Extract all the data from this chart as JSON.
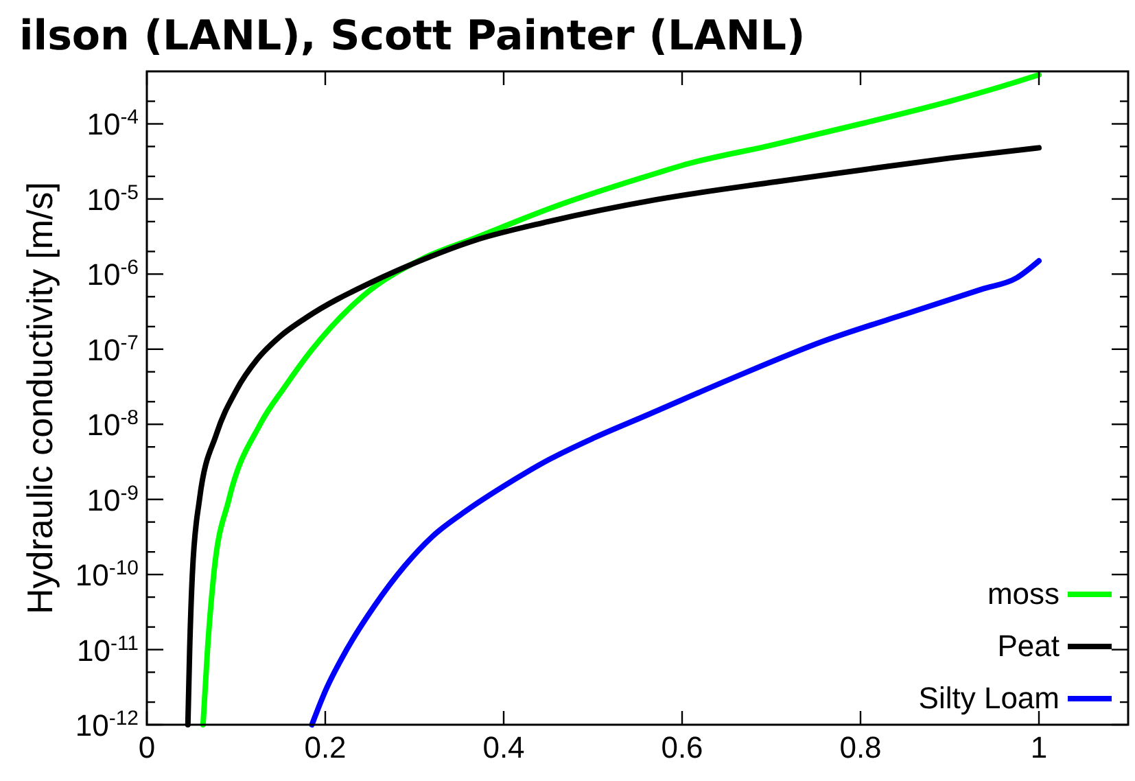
{
  "chart_data": {
    "type": "line",
    "ylabel": "Hydraulic conductivity [m/s]",
    "annotations": [
      "ilson (LANL), Scott Painter (LANL)"
    ],
    "log": "y",
    "legend": "bottom right",
    "xlim": [
      0,
      1.1
    ],
    "xticks": [
      0,
      0.2,
      0.4,
      0.6,
      0.8,
      1
    ],
    "ylim": [
      1e-12,
      0.0005
    ],
    "yticks": [
      {
        "value": 1e-12,
        "label": "10$^{-12}$"
      },
      {
        "value": 2e-12,
        "label": null
      },
      {
        "value": 5e-12,
        "label": null
      },
      {
        "value": 1e-11,
        "label": "10$^{-11}$"
      },
      {
        "value": 2e-11,
        "label": null
      },
      {
        "value": 5e-11,
        "label": null
      },
      {
        "value": 1e-10,
        "label": "10$^{-10}$"
      },
      {
        "value": 2e-10,
        "label": null
      },
      {
        "value": 5e-10,
        "label": null
      },
      {
        "value": 1e-09,
        "label": "10$^{-9}$"
      },
      {
        "value": 2e-09,
        "label": null
      },
      {
        "value": 5e-09,
        "label": null
      },
      {
        "value": 1e-08,
        "label": "10$^{-8}$"
      },
      {
        "value": 2e-08,
        "label": null
      },
      {
        "value": 5e-08,
        "label": null
      },
      {
        "value": 1e-07,
        "label": "10$^{-7}$"
      },
      {
        "value": 2e-07,
        "label": null
      },
      {
        "value": 5e-07,
        "label": null
      },
      {
        "value": 1e-06,
        "label": "10$^{-6}$"
      },
      {
        "value": 2e-06,
        "label": null
      },
      {
        "value": 5e-06,
        "label": null
      },
      {
        "value": 1e-05,
        "label": "10$^{-5}$"
      },
      {
        "value": 2e-05,
        "label": null
      },
      {
        "value": 5e-05,
        "label": null
      },
      {
        "value": 0.0001,
        "label": "10$^{-4}$"
      },
      {
        "value": 0.0002,
        "label": null
      }
    ],
    "series": [
      {
        "name": "moss",
        "color": "#00ff00",
        "x": [
          0.063,
          0.068,
          0.075,
          0.092,
          0.127,
          0.155,
          0.184,
          0.243,
          0.309,
          0.367,
          0.462,
          0.571,
          0.6,
          0.7,
          0.8,
          0.9,
          0.96,
          1.0
        ],
        "values": [
          1e-12,
          1e-11,
          1e-10,
          1e-09,
          1e-08,
          3.2e-08,
          9.5e-08,
          5.2e-07,
          1.6e-06,
          3e-06,
          8.3e-06,
          2.2e-05,
          2.8e-05,
          5.2e-05,
          0.0001,
          0.0002,
          0.00032,
          0.00045
        ]
      },
      {
        "name": "Peat",
        "color": "#000000",
        "x": [
          0.046,
          0.048,
          0.051,
          0.059,
          0.078,
          0.1,
          0.124,
          0.15,
          0.178,
          0.255,
          0.3,
          0.367,
          0.45,
          0.571,
          0.706,
          0.808,
          0.9,
          1.0
        ],
        "values": [
          1e-12,
          1e-11,
          1e-10,
          1e-09,
          7.4e-09,
          2.8e-08,
          7.4e-08,
          1.5e-07,
          2.6e-07,
          8.1e-07,
          1.4e-06,
          2.8e-06,
          5e-06,
          9.8e-06,
          1.7e-05,
          2.5e-05,
          3.5e-05,
          4.8e-05
        ]
      },
      {
        "name": "Silty Loam",
        "color": "#0000ff",
        "x": [
          0.185,
          0.2,
          0.224,
          0.255,
          0.289,
          0.32,
          0.359,
          0.4,
          0.451,
          0.5,
          0.559,
          0.654,
          0.757,
          0.86,
          0.936,
          0.975,
          1.0
        ],
        "values": [
          1e-12,
          2.8e-12,
          1e-11,
          3.8e-11,
          1.3e-10,
          3.2e-10,
          7.2e-10,
          1.5e-09,
          3.4e-09,
          6.5e-09,
          1.3e-08,
          4e-08,
          1.26e-07,
          3.2e-07,
          6.3e-07,
          8.9e-07,
          1.5e-06
        ]
      }
    ]
  }
}
